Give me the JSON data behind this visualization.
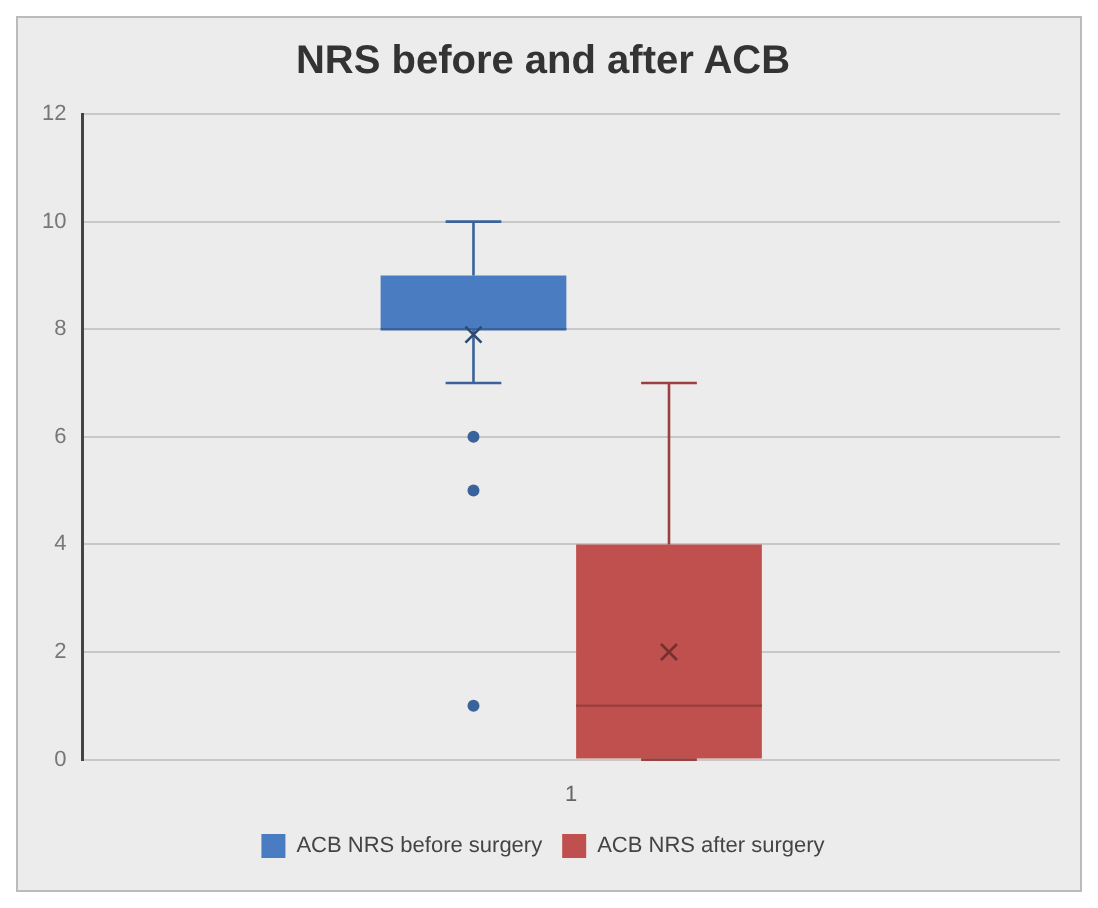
{
  "chart_data": {
    "type": "box",
    "title": "NRS before and after ACB",
    "categories": [
      "1"
    ],
    "ylim": [
      0,
      12
    ],
    "yticks": [
      0,
      2,
      4,
      6,
      8,
      10,
      12
    ],
    "grid": "y",
    "legend": "bottom",
    "series": [
      {
        "name": "ACB NRS before surgery",
        "color": "#4a7cc2",
        "boxes": [
          {
            "low": 7,
            "q1": 8,
            "median": 8,
            "q3": 9,
            "high": 10,
            "mean": 7.9,
            "outliers": [
              6,
              5,
              1
            ]
          }
        ]
      },
      {
        "name": "ACB NRS after surgery",
        "color": "#c0504d",
        "boxes": [
          {
            "low": 0,
            "q1": 0,
            "median": 1,
            "q3": 4,
            "high": 7,
            "mean": 2
          }
        ]
      }
    ]
  }
}
